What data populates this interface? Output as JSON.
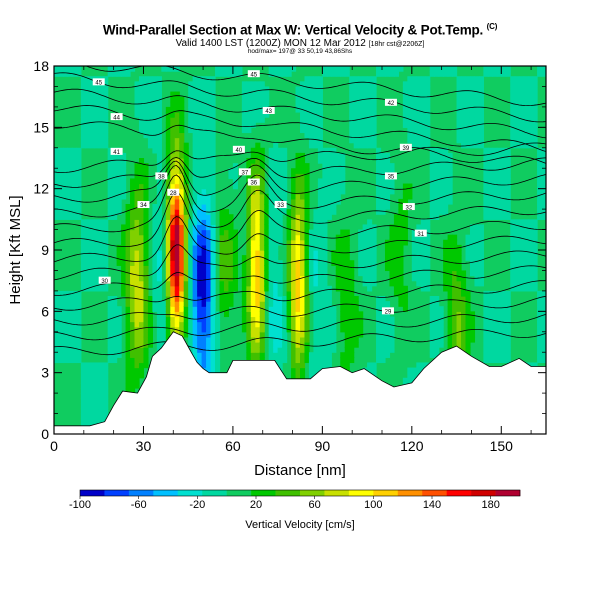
{
  "chart_data": {
    "type": "heatmap",
    "title": "Wind-Parallel Section at Max W: Vertical Velocity & Pot.Temp.",
    "title_mark": "(C)",
    "subtitle": "Valid 1400 LST (1200Z) MON 12 Mar 2012",
    "subtitle_small": "[18hr cst@2206Z]",
    "subsubtitle": "hod/max= 197@ 33 50,19 43,86Shs",
    "xlabel": "Distance [nm]",
    "ylabel": "Height [Kft MSL]",
    "xlim": [
      0,
      165
    ],
    "ylim": [
      0,
      18
    ],
    "xticks": [
      0,
      30,
      60,
      90,
      120,
      150
    ],
    "yticks": [
      0,
      3,
      6,
      9,
      12,
      15,
      18
    ],
    "colorbar": {
      "title": "Vertical Velocity [cm/s]",
      "tick_labels": [
        "-100",
        "-60",
        "-20",
        "20",
        "60",
        "100",
        "140",
        "180"
      ],
      "range": [
        -100,
        200
      ],
      "colors": [
        "#0000c8",
        "#0040ff",
        "#0080ff",
        "#00c0ff",
        "#00e0d0",
        "#00d8a0",
        "#10cc60",
        "#00c800",
        "#40c000",
        "#80d000",
        "#c8e000",
        "#ffff00",
        "#ffd000",
        "#ff9000",
        "#ff5000",
        "#ff0000",
        "#d00000",
        "#b00030"
      ]
    },
    "background_w": 0,
    "updraft_cores": [
      {
        "x": 28,
        "z": 7.5,
        "w": 80
      },
      {
        "x": 41,
        "z": 9.0,
        "w": 197
      },
      {
        "x": 57,
        "z": 8.0,
        "w": 40
      },
      {
        "x": 68,
        "z": 8.2,
        "w": 120
      },
      {
        "x": 82,
        "z": 7.5,
        "w": 110
      },
      {
        "x": 98,
        "z": 6.5,
        "w": 30
      },
      {
        "x": 116,
        "z": 9.0,
        "w": 25
      },
      {
        "x": 135,
        "z": 5.0,
        "w": 50
      }
    ],
    "downdraft_cores": [
      {
        "x": 50,
        "z": 7.0,
        "w": -95
      },
      {
        "x": 36,
        "z": 8.0,
        "w": -25
      },
      {
        "x": 73,
        "z": 7.0,
        "w": -25
      },
      {
        "x": 88,
        "z": 6.0,
        "w": -20
      }
    ],
    "terrain": [
      [
        0,
        0.4
      ],
      [
        12,
        0.4
      ],
      [
        17,
        0.6
      ],
      [
        20,
        1.4
      ],
      [
        23,
        2.1
      ],
      [
        28,
        2.0
      ],
      [
        31,
        2.8
      ],
      [
        33,
        3.8
      ],
      [
        36,
        4.2
      ],
      [
        40,
        5.0
      ],
      [
        43,
        4.8
      ],
      [
        46,
        4.0
      ],
      [
        48,
        3.5
      ],
      [
        50,
        3.2
      ],
      [
        52,
        3.0
      ],
      [
        58,
        3.0
      ],
      [
        60,
        3.6
      ],
      [
        74,
        3.6
      ],
      [
        78,
        2.7
      ],
      [
        86,
        2.7
      ],
      [
        90,
        3.2
      ],
      [
        96,
        3.3
      ],
      [
        100,
        3.0
      ],
      [
        104,
        3.2
      ],
      [
        110,
        2.6
      ],
      [
        114,
        2.3
      ],
      [
        120,
        2.5
      ],
      [
        124,
        3.2
      ],
      [
        130,
        4.0
      ],
      [
        135,
        4.3
      ],
      [
        140,
        3.8
      ],
      [
        146,
        3.3
      ],
      [
        150,
        3.3
      ],
      [
        156,
        3.7
      ],
      [
        160,
        3.3
      ],
      [
        165,
        3.3
      ]
    ],
    "theta_contour_labels": [
      {
        "x": 15,
        "z": 17.2,
        "text": "45"
      },
      {
        "x": 67,
        "z": 17.6,
        "text": "45"
      },
      {
        "x": 21,
        "z": 15.5,
        "text": "44"
      },
      {
        "x": 72,
        "z": 15.8,
        "text": "43"
      },
      {
        "x": 113,
        "z": 16.2,
        "text": "42"
      },
      {
        "x": 21,
        "z": 13.8,
        "text": "41"
      },
      {
        "x": 62,
        "z": 13.9,
        "text": "40"
      },
      {
        "x": 118,
        "z": 14.0,
        "text": "39"
      },
      {
        "x": 36,
        "z": 12.6,
        "text": "38"
      },
      {
        "x": 64,
        "z": 12.8,
        "text": "37"
      },
      {
        "x": 67,
        "z": 12.3,
        "text": "36"
      },
      {
        "x": 113,
        "z": 12.6,
        "text": "35"
      },
      {
        "x": 30,
        "z": 11.2,
        "text": "34"
      },
      {
        "x": 76,
        "z": 11.2,
        "text": "33"
      },
      {
        "x": 119,
        "z": 11.1,
        "text": "32"
      },
      {
        "x": 123,
        "z": 9.8,
        "text": "31"
      },
      {
        "x": 17,
        "z": 7.5,
        "text": "30"
      },
      {
        "x": 112,
        "z": 6.0,
        "text": "29"
      },
      {
        "x": 40,
        "z": 11.8,
        "text": "28"
      }
    ]
  }
}
